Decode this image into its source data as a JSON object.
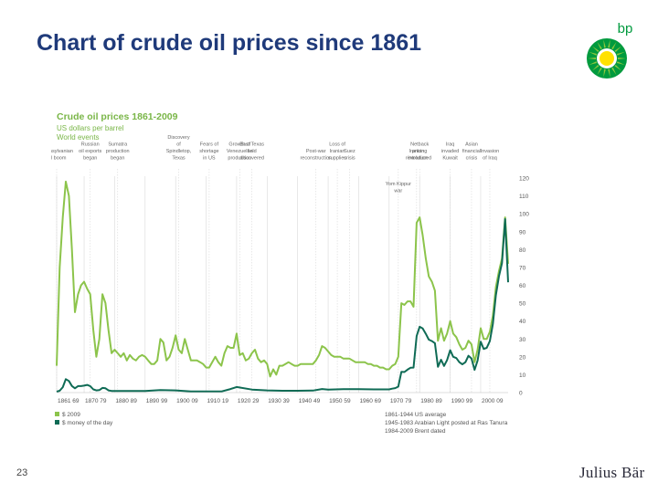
{
  "slide": {
    "title": "Chart of crude oil prices since 1861",
    "page_number": "23",
    "logo_text": "bp",
    "footer_logo": "Julius Bär"
  },
  "colors": {
    "title": "#1f3a7a",
    "series_2009": "#8cc44b",
    "series_money_of_day": "#0f6b55",
    "gridline": "#d9d9d9",
    "bp_green": "#009a3e",
    "bp_yellow": "#ffe100"
  },
  "chart_data": {
    "type": "line",
    "title": "Crude oil prices 1861-2009",
    "subtitle_lines": [
      "US dollars per barrel",
      "World events"
    ],
    "ylim": [
      0,
      120
    ],
    "y_ticks": [
      0,
      10,
      20,
      30,
      40,
      50,
      60,
      70,
      80,
      90,
      100,
      110,
      120
    ],
    "y_tick_labels": [
      "0",
      "10",
      "20",
      "30",
      "40",
      "50",
      "60",
      "70",
      "80",
      "90",
      "100",
      "110",
      "120"
    ],
    "xlim": [
      1861,
      2009
    ],
    "x_tick_labels": [
      "1861 69",
      "1870 79",
      "1880 89",
      "1890 99",
      "1900 09",
      "1910 19",
      "1920 29",
      "1930 39",
      "1940 49",
      "1950 59",
      "1960 69",
      "1970 79",
      "1980 89",
      "1990 99",
      "2000 09"
    ],
    "grid": "vertical",
    "legend": [
      {
        "name": "$ 2009",
        "color": "#8cc44b"
      },
      {
        "name": "$ money of the day",
        "color": "#0f6b55"
      }
    ],
    "notes": [
      "1861-1944 US average",
      "1945-1983 Arabian Light posted at Ras Tanura",
      "1984-2009 Brent dated"
    ],
    "events": [
      {
        "year": 1861,
        "label": [
          "Pennsylvanian",
          "oil boom"
        ]
      },
      {
        "year": 1872,
        "label": [
          "Russian",
          "oil exports",
          "began"
        ]
      },
      {
        "year": 1881,
        "label": [
          "Sumatra",
          "production",
          "began"
        ]
      },
      {
        "year": 1901,
        "label": [
          "Discovery",
          "of",
          "Spindletop,",
          "Texas"
        ]
      },
      {
        "year": 1911,
        "label": [
          "Fears of",
          "shortage",
          "in US"
        ]
      },
      {
        "year": 1921,
        "label": [
          "Growth of",
          "Venezuelan",
          "production"
        ]
      },
      {
        "year": 1925,
        "label": [
          "East Texas",
          "field",
          "discovered"
        ]
      },
      {
        "year": 1946,
        "label": [
          "Post-war",
          "reconstruction"
        ]
      },
      {
        "year": 1953,
        "label": [
          "Loss of",
          "Iranian",
          "supplies"
        ]
      },
      {
        "year": 1957,
        "label": [
          "Suez",
          "crisis"
        ]
      },
      {
        "year": 1973,
        "label": [
          "Yom Kippur",
          "war"
        ]
      },
      {
        "year": 1979,
        "label": [
          "Iranian",
          "revolution"
        ]
      },
      {
        "year": 1980,
        "label": [
          "Netback",
          "pricing",
          "introduced"
        ]
      },
      {
        "year": 1990,
        "label": [
          "Iraq",
          "invaded",
          "Kuwait"
        ]
      },
      {
        "year": 1997,
        "label": [
          "Asian",
          "financial",
          "crisis"
        ]
      },
      {
        "year": 2003,
        "label": [
          "Invasion",
          "of Iraq"
        ]
      }
    ],
    "series": [
      {
        "name": "$ 2009",
        "color": "#8cc44b",
        "points": [
          [
            1861,
            15
          ],
          [
            1862,
            70
          ],
          [
            1863,
            98
          ],
          [
            1864,
            118
          ],
          [
            1865,
            110
          ],
          [
            1866,
            80
          ],
          [
            1867,
            45
          ],
          [
            1868,
            55
          ],
          [
            1869,
            60
          ],
          [
            1870,
            62
          ],
          [
            1871,
            58
          ],
          [
            1872,
            55
          ],
          [
            1873,
            35
          ],
          [
            1874,
            20
          ],
          [
            1875,
            30
          ],
          [
            1876,
            55
          ],
          [
            1877,
            50
          ],
          [
            1878,
            35
          ],
          [
            1879,
            22
          ],
          [
            1880,
            24
          ],
          [
            1881,
            22
          ],
          [
            1882,
            20
          ],
          [
            1883,
            22
          ],
          [
            1884,
            18
          ],
          [
            1885,
            21
          ],
          [
            1886,
            19
          ],
          [
            1887,
            18
          ],
          [
            1888,
            20
          ],
          [
            1889,
            21
          ],
          [
            1890,
            20
          ],
          [
            1891,
            18
          ],
          [
            1892,
            16
          ],
          [
            1893,
            16
          ],
          [
            1894,
            18
          ],
          [
            1895,
            30
          ],
          [
            1896,
            28
          ],
          [
            1897,
            18
          ],
          [
            1898,
            20
          ],
          [
            1899,
            25
          ],
          [
            1900,
            32
          ],
          [
            1901,
            24
          ],
          [
            1902,
            22
          ],
          [
            1903,
            30
          ],
          [
            1904,
            24
          ],
          [
            1905,
            18
          ],
          [
            1906,
            18
          ],
          [
            1907,
            18
          ],
          [
            1908,
            17
          ],
          [
            1909,
            16
          ],
          [
            1910,
            14
          ],
          [
            1911,
            14
          ],
          [
            1912,
            17
          ],
          [
            1913,
            20
          ],
          [
            1914,
            17
          ],
          [
            1915,
            15
          ],
          [
            1916,
            22
          ],
          [
            1917,
            26
          ],
          [
            1918,
            25
          ],
          [
            1919,
            25
          ],
          [
            1920,
            33
          ],
          [
            1921,
            21
          ],
          [
            1922,
            22
          ],
          [
            1923,
            18
          ],
          [
            1924,
            19
          ],
          [
            1925,
            22
          ],
          [
            1926,
            24
          ],
          [
            1927,
            19
          ],
          [
            1928,
            17
          ],
          [
            1929,
            18
          ],
          [
            1930,
            16
          ],
          [
            1931,
            9
          ],
          [
            1932,
            13
          ],
          [
            1933,
            10
          ],
          [
            1934,
            15
          ],
          [
            1935,
            15
          ],
          [
            1936,
            16
          ],
          [
            1937,
            17
          ],
          [
            1938,
            16
          ],
          [
            1939,
            15
          ],
          [
            1940,
            15
          ],
          [
            1941,
            16
          ],
          [
            1942,
            16
          ],
          [
            1943,
            16
          ],
          [
            1944,
            16
          ],
          [
            1945,
            16
          ],
          [
            1946,
            18
          ],
          [
            1947,
            21
          ],
          [
            1948,
            26
          ],
          [
            1949,
            25
          ],
          [
            1950,
            23
          ],
          [
            1951,
            21
          ],
          [
            1952,
            20
          ],
          [
            1953,
            20
          ],
          [
            1954,
            20
          ],
          [
            1955,
            19
          ],
          [
            1956,
            19
          ],
          [
            1957,
            19
          ],
          [
            1958,
            18
          ],
          [
            1959,
            17
          ],
          [
            1960,
            17
          ],
          [
            1961,
            17
          ],
          [
            1962,
            17
          ],
          [
            1963,
            16
          ],
          [
            1964,
            16
          ],
          [
            1965,
            15
          ],
          [
            1966,
            15
          ],
          [
            1967,
            14
          ],
          [
            1968,
            14
          ],
          [
            1969,
            13
          ],
          [
            1970,
            13
          ],
          [
            1971,
            15
          ],
          [
            1972,
            16
          ],
          [
            1973,
            20
          ],
          [
            1974,
            50
          ],
          [
            1975,
            49
          ],
          [
            1976,
            51
          ],
          [
            1977,
            51
          ],
          [
            1978,
            48
          ],
          [
            1979,
            95
          ],
          [
            1980,
            98
          ],
          [
            1981,
            88
          ],
          [
            1982,
            75
          ],
          [
            1983,
            65
          ],
          [
            1984,
            62
          ],
          [
            1985,
            57
          ],
          [
            1986,
            29
          ],
          [
            1987,
            36
          ],
          [
            1988,
            29
          ],
          [
            1989,
            33
          ],
          [
            1990,
            40
          ],
          [
            1991,
            33
          ],
          [
            1992,
            31
          ],
          [
            1993,
            27
          ],
          [
            1994,
            24
          ],
          [
            1995,
            25
          ],
          [
            1996,
            29
          ],
          [
            1997,
            27
          ],
          [
            1998,
            17
          ],
          [
            1999,
            24
          ],
          [
            2000,
            36
          ],
          [
            2001,
            30
          ],
          [
            2002,
            30
          ],
          [
            2003,
            34
          ],
          [
            2004,
            43
          ],
          [
            2005,
            59
          ],
          [
            2006,
            68
          ],
          [
            2007,
            75
          ],
          [
            2008,
            98
          ],
          [
            2009,
            72
          ]
        ]
      },
      {
        "name": "$ money of the day",
        "color": "#0f6b55",
        "points": [
          [
            1861,
            0.5
          ],
          [
            1862,
            1
          ],
          [
            1863,
            3
          ],
          [
            1864,
            7.5
          ],
          [
            1865,
            6.5
          ],
          [
            1866,
            3.7
          ],
          [
            1867,
            2.4
          ],
          [
            1868,
            3.6
          ],
          [
            1869,
            3.6
          ],
          [
            1870,
            3.9
          ],
          [
            1871,
            4.3
          ],
          [
            1872,
            3.6
          ],
          [
            1873,
            1.8
          ],
          [
            1874,
            1.2
          ],
          [
            1875,
            1.4
          ],
          [
            1876,
            2.6
          ],
          [
            1877,
            2.4
          ],
          [
            1878,
            1.2
          ],
          [
            1879,
            0.9
          ],
          [
            1880,
            0.9
          ],
          [
            1885,
            0.9
          ],
          [
            1890,
            0.9
          ],
          [
            1895,
            1.4
          ],
          [
            1900,
            1.2
          ],
          [
            1905,
            0.6
          ],
          [
            1910,
            0.6
          ],
          [
            1915,
            0.6
          ],
          [
            1918,
            2
          ],
          [
            1920,
            3.1
          ],
          [
            1925,
            1.7
          ],
          [
            1930,
            1.2
          ],
          [
            1935,
            1
          ],
          [
            1940,
            1
          ],
          [
            1945,
            1.1
          ],
          [
            1948,
            2
          ],
          [
            1950,
            1.7
          ],
          [
            1955,
            1.9
          ],
          [
            1960,
            1.9
          ],
          [
            1965,
            1.8
          ],
          [
            1970,
            1.8
          ],
          [
            1971,
            2.2
          ],
          [
            1972,
            2.5
          ],
          [
            1973,
            3.3
          ],
          [
            1974,
            11.6
          ],
          [
            1975,
            11.5
          ],
          [
            1976,
            12.8
          ],
          [
            1977,
            13.9
          ],
          [
            1978,
            14
          ],
          [
            1979,
            31.6
          ],
          [
            1980,
            36.8
          ],
          [
            1981,
            35.9
          ],
          [
            1982,
            32.9
          ],
          [
            1983,
            29.6
          ],
          [
            1984,
            28.8
          ],
          [
            1985,
            27.6
          ],
          [
            1986,
            14.4
          ],
          [
            1987,
            18.4
          ],
          [
            1988,
            14.9
          ],
          [
            1989,
            18.2
          ],
          [
            1990,
            23.7
          ],
          [
            1991,
            20
          ],
          [
            1992,
            19.3
          ],
          [
            1993,
            17
          ],
          [
            1994,
            15.8
          ],
          [
            1995,
            17
          ],
          [
            1996,
            20.6
          ],
          [
            1997,
            19.1
          ],
          [
            1998,
            12.7
          ],
          [
            1999,
            17.9
          ],
          [
            2000,
            28.5
          ],
          [
            2001,
            24.4
          ],
          [
            2002,
            25
          ],
          [
            2003,
            28.8
          ],
          [
            2004,
            38.3
          ],
          [
            2005,
            54.5
          ],
          [
            2006,
            65.1
          ],
          [
            2007,
            72.4
          ],
          [
            2008,
            97
          ],
          [
            2009,
            61.7
          ]
        ]
      }
    ]
  }
}
